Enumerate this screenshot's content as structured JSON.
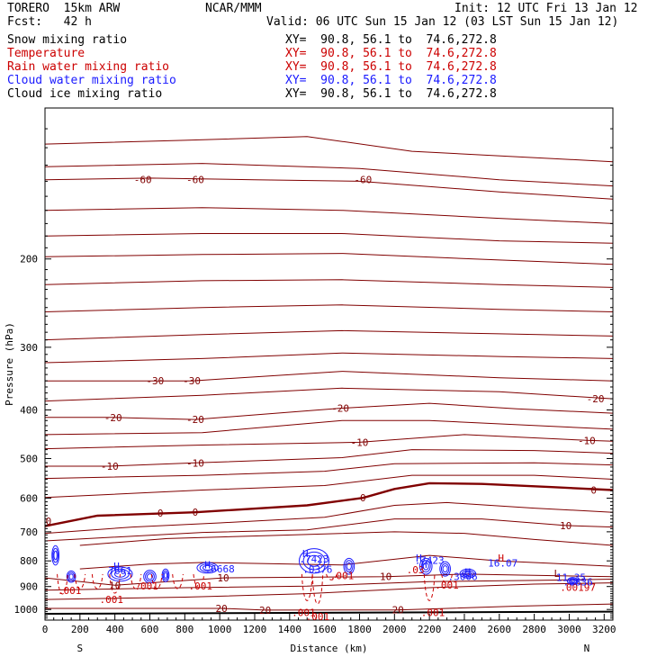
{
  "header": {
    "model": "TORERO  15km ARW",
    "org": "NCAR/MMM",
    "init": "Init: 12 UTC Fri 13 Jan 12",
    "fcst": "Fcst:   42 h",
    "valid": "Valid: 06 UTC Sun 15 Jan 12 (03 LST Sun 15 Jan 12)",
    "fields": [
      {
        "label": "Snow mixing ratio",
        "xy": "",
        "color": "#000000"
      },
      {
        "label": "Temperature",
        "xy": "XY=  90.8, 56.1 to  74.6,272.8",
        "color": "#cc0000"
      },
      {
        "label": "Rain water mixing ratio",
        "xy": "XY=  90.8, 56.1 to  74.6,272.8",
        "color": "#cc0000"
      },
      {
        "label": "Cloud water mixing ratio",
        "xy": "XY=  90.8, 56.1 to  74.6,272.8",
        "color": "#1a1aff"
      },
      {
        "label": "Cloud ice mixing ratio",
        "xy": "XY=  90.8, 56.1 to  74.6,272.8",
        "color": "#000000"
      }
    ],
    "snow_xy": "XY=  90.8, 56.1 to  74.6,272.8"
  },
  "chart_data": {
    "type": "line",
    "title": "",
    "xlabel": "Distance (km)",
    "ylabel": "Pressure (hPa)",
    "xlim": [
      0,
      3250
    ],
    "ylim": [
      1050,
      100
    ],
    "x_ticks": [
      0,
      200,
      400,
      600,
      800,
      1000,
      1200,
      1400,
      1600,
      1800,
      2000,
      2200,
      2400,
      2600,
      2800,
      3000,
      3200
    ],
    "y_ticks": [
      200,
      300,
      400,
      500,
      600,
      700,
      800,
      900,
      1000
    ],
    "x_end_labels": {
      "left": "S",
      "right": "N"
    },
    "colors": {
      "temperature": "#800000",
      "cloud_water": "#1a1aff",
      "rain": "#cc0000",
      "frame": "#000000"
    },
    "temperature_labels": [
      {
        "x": 560,
        "p": 139,
        "text": "-60"
      },
      {
        "x": 860,
        "p": 139,
        "text": "-60"
      },
      {
        "x": 1820,
        "p": 139,
        "text": "-60"
      },
      {
        "x": 630,
        "p": 350,
        "text": "-30"
      },
      {
        "x": 840,
        "p": 350,
        "text": "-30"
      },
      {
        "x": 3150,
        "p": 380,
        "text": "-20"
      },
      {
        "x": 390,
        "p": 414,
        "text": "-20"
      },
      {
        "x": 860,
        "p": 418,
        "text": "-20"
      },
      {
        "x": 1690,
        "p": 397,
        "text": "-20"
      },
      {
        "x": 1800,
        "p": 464,
        "text": "-10"
      },
      {
        "x": 3100,
        "p": 460,
        "text": "-10"
      },
      {
        "x": 370,
        "p": 518,
        "text": "-10"
      },
      {
        "x": 860,
        "p": 510,
        "text": "-10"
      },
      {
        "x": 1820,
        "p": 599,
        "text": "0"
      },
      {
        "x": 3140,
        "p": 578,
        "text": "0"
      },
      {
        "x": 20,
        "p": 666,
        "text": "0"
      },
      {
        "x": 660,
        "p": 642,
        "text": "0"
      },
      {
        "x": 860,
        "p": 640,
        "text": "0"
      },
      {
        "x": 2980,
        "p": 680,
        "text": "10"
      },
      {
        "x": 400,
        "p": 895,
        "text": "10"
      },
      {
        "x": 1020,
        "p": 865,
        "text": "10"
      },
      {
        "x": 1950,
        "p": 860,
        "text": "10"
      },
      {
        "x": 1010,
        "p": 995,
        "text": "20"
      },
      {
        "x": 1260,
        "p": 1003,
        "text": "20"
      },
      {
        "x": 2020,
        "p": 1002,
        "text": "20"
      }
    ],
    "rain_labels": [
      {
        "x": 140,
        "p": 916,
        "text": ".001"
      },
      {
        "x": 580,
        "p": 897,
        "text": ".001"
      },
      {
        "x": 890,
        "p": 897,
        "text": ".001"
      },
      {
        "x": 380,
        "p": 955,
        "text": ".001"
      },
      {
        "x": 1480,
        "p": 1013,
        "text": ".001"
      },
      {
        "x": 1560,
        "p": 1033,
        "text": ".001"
      },
      {
        "x": 1700,
        "p": 856,
        "text": ".001"
      },
      {
        "x": 2220,
        "p": 1014,
        "text": ".001"
      },
      {
        "x": 2300,
        "p": 894,
        "text": ".001"
      },
      {
        "x": 3050,
        "p": 903,
        "text": ".00197"
      },
      {
        "x": 2120,
        "p": 833,
        "text": ".03"
      }
    ],
    "cloud_labels": [
      {
        "x": 430,
        "p": 837,
        "text": "7661"
      },
      {
        "x": 1540,
        "p": 793,
        "text": ".7423"
      },
      {
        "x": 2200,
        "p": 797,
        "text": ".7423"
      },
      {
        "x": 2390,
        "p": 860,
        "text": ".3006"
      },
      {
        "x": 3050,
        "p": 881,
        "text": ".8836"
      },
      {
        "x": 1560,
        "p": 831,
        "text": ".0376"
      },
      {
        "x": 3010,
        "p": 862,
        "text": "11.35"
      },
      {
        "x": 2620,
        "p": 808,
        "text": "16.07"
      },
      {
        "x": 1000,
        "p": 830,
        "text": ".6668"
      }
    ],
    "markers": [
      {
        "x": 410,
        "p": 820,
        "text": "H",
        "color": "#1a1aff"
      },
      {
        "x": 930,
        "p": 814,
        "text": "H",
        "color": "#1a1aff"
      },
      {
        "x": 1490,
        "p": 773,
        "text": "H",
        "color": "#1a1aff"
      },
      {
        "x": 2140,
        "p": 790,
        "text": "H",
        "color": "#1a1aff"
      },
      {
        "x": 2170,
        "p": 812,
        "text": "H",
        "color": "#1a1aff"
      },
      {
        "x": 2420,
        "p": 841,
        "text": "H",
        "color": "#1a1aff"
      },
      {
        "x": 2610,
        "p": 790,
        "text": "H",
        "color": "#cc0000"
      },
      {
        "x": 2930,
        "p": 847,
        "text": "L",
        "color": "#800000"
      }
    ]
  }
}
